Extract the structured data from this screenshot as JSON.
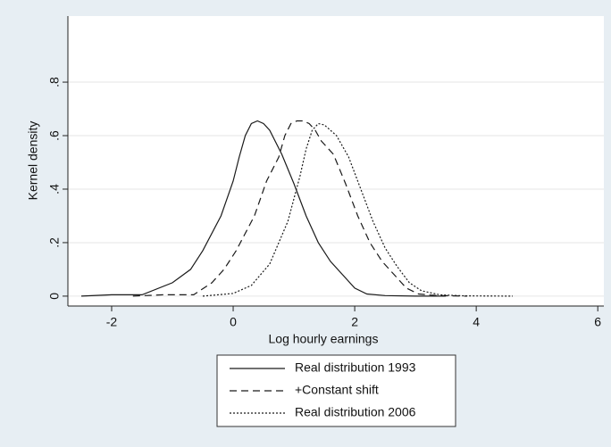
{
  "chart_data": {
    "type": "line",
    "xlabel": "Log hourly earnings",
    "ylabel": "Kernel density",
    "xlim": [
      -2.72,
      6.1
    ],
    "ylim": [
      -0.037,
      1.047
    ],
    "xticks": [
      -2,
      0,
      2,
      4,
      6
    ],
    "yticks": [
      0,
      {
        "value": 0.2,
        "label": ".2"
      },
      {
        "value": 0.4,
        "label": ".4"
      },
      {
        "value": 0.6,
        "label": ".6"
      },
      {
        "value": 0.8,
        "label": ".8"
      }
    ],
    "grid": true,
    "legend": "bottom",
    "series": [
      {
        "name": "Real distribution 1993",
        "color": "#1a1a1a",
        "style": "solid",
        "x": [
          -2.5,
          -2,
          -1.5,
          -1,
          -0.7,
          -0.5,
          -0.2,
          0,
          0.1,
          0.2,
          0.3,
          0.4,
          0.5,
          0.6,
          0.8,
          1.0,
          1.2,
          1.4,
          1.6,
          1.8,
          2.0,
          2.2,
          2.5,
          3.0,
          3.5
        ],
        "values": [
          0,
          0.005,
          0.005,
          0.05,
          0.1,
          0.17,
          0.3,
          0.43,
          0.52,
          0.6,
          0.645,
          0.655,
          0.645,
          0.62,
          0.53,
          0.42,
          0.3,
          0.2,
          0.13,
          0.08,
          0.03,
          0.008,
          0.002,
          0,
          0
        ]
      },
      {
        "name": "+Constant shift",
        "color": "#1a1a1a",
        "style": "dashed",
        "x": [
          -1.65,
          -1.15,
          -0.65,
          -0.35,
          -0.15,
          0.05,
          0.35,
          0.55,
          0.75,
          0.85,
          0.95,
          1.05,
          1.15,
          1.25,
          1.35,
          1.45,
          1.65,
          1.85,
          2.05,
          2.25,
          2.45,
          2.65,
          2.85,
          3.05,
          3.35,
          3.85
        ],
        "values": [
          0,
          0.005,
          0.005,
          0.05,
          0.1,
          0.17,
          0.3,
          0.43,
          0.52,
          0.6,
          0.645,
          0.655,
          0.655,
          0.645,
          0.62,
          0.58,
          0.53,
          0.42,
          0.3,
          0.2,
          0.13,
          0.08,
          0.03,
          0.008,
          0.002,
          0
        ]
      },
      {
        "name": "Real distribution 2006",
        "color": "#1a1a1a",
        "style": "dotted",
        "x": [
          -0.5,
          0,
          0.3,
          0.6,
          0.9,
          1.1,
          1.2,
          1.3,
          1.4,
          1.5,
          1.7,
          1.9,
          2.1,
          2.3,
          2.5,
          2.7,
          2.9,
          3.1,
          3.4,
          3.8,
          4.6
        ],
        "values": [
          0,
          0.01,
          0.04,
          0.12,
          0.28,
          0.45,
          0.55,
          0.62,
          0.645,
          0.64,
          0.6,
          0.52,
          0.4,
          0.28,
          0.18,
          0.11,
          0.05,
          0.02,
          0.005,
          0.001,
          0
        ]
      }
    ]
  }
}
